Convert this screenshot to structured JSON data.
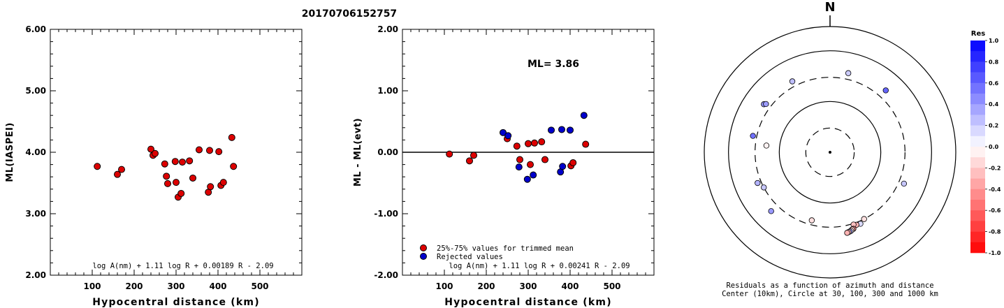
{
  "title": "20170706152757",
  "chart_data": [
    {
      "type": "scatter",
      "title": "",
      "xlabel": "Hypocentral distance (km)",
      "ylabel": "ML(IASPEI)",
      "xlim": [
        0,
        600
      ],
      "ylim": [
        2.0,
        6.0
      ],
      "xticks": [
        "100",
        "200",
        "300",
        "400",
        "500"
      ],
      "yticks": [
        "2.00",
        "3.00",
        "4.00",
        "5.00",
        "6.00"
      ],
      "formula": "log A(nm) + 1.11 log R + 0.00189 R - 2.09",
      "series": [
        {
          "color": "#dd0000",
          "x": [
            112,
            160,
            170,
            240,
            245,
            250,
            273,
            277,
            280,
            298,
            300,
            305,
            312,
            315,
            332,
            340,
            355,
            377,
            380,
            382,
            402,
            407,
            413,
            433,
            437
          ],
          "y": [
            3.77,
            3.64,
            3.72,
            4.05,
            3.95,
            3.98,
            3.81,
            3.61,
            3.49,
            3.85,
            3.51,
            3.27,
            3.33,
            3.84,
            3.86,
            3.58,
            4.04,
            3.35,
            4.03,
            3.44,
            4.01,
            3.46,
            3.51,
            4.24,
            3.77
          ]
        }
      ]
    },
    {
      "type": "scatter",
      "title": "",
      "annotation": "ML= 3.86",
      "xlabel": "Hypocentral distance (km)",
      "ylabel": "ML - ML(evt)",
      "xlim": [
        0,
        600
      ],
      "ylim": [
        -2.0,
        2.0
      ],
      "xticks": [
        "100",
        "200",
        "300",
        "400",
        "500"
      ],
      "yticks": [
        "-2.00",
        "-1.00",
        "0.00",
        "1.00",
        "2.00"
      ],
      "formula": "log A(nm) + 1.11 log R + 0.00241 R - 2.09",
      "legend": [
        "25%-75% values for trimmed mean",
        "Rejected values"
      ],
      "series": [
        {
          "name": "25%-75% values for trimmed mean",
          "color": "#dd0000",
          "x": [
            112,
            160,
            170,
            250,
            273,
            280,
            300,
            305,
            315,
            332,
            340,
            402,
            407,
            437
          ],
          "y": [
            -0.03,
            -0.14,
            -0.05,
            0.22,
            0.1,
            -0.12,
            0.14,
            -0.2,
            0.15,
            0.17,
            -0.12,
            -0.22,
            -0.17,
            0.13
          ]
        },
        {
          "name": "Rejected values",
          "color": "#0000cc",
          "x": [
            240,
            252,
            278,
            298,
            312,
            355,
            377,
            380,
            382,
            400,
            433
          ],
          "y": [
            0.32,
            0.27,
            -0.24,
            -0.44,
            -0.37,
            0.36,
            -0.32,
            0.37,
            -0.23,
            0.36,
            0.6
          ]
        }
      ]
    },
    {
      "type": "scatter",
      "title": "N",
      "caption_line1": "Residuals as a function of azimuth and distance",
      "caption_line2": "Center (10km), Circle at 30, 100, 300 and 1000 km",
      "colorbar_title": "Res",
      "colorbar_ticks": [
        "1.0",
        "0.8",
        "0.6",
        "0.4",
        "0.2",
        "0.0",
        "-0.2",
        "-0.4",
        "-0.6",
        "-0.8",
        "-1.0"
      ],
      "rings_km": [
        30,
        100,
        300,
        1000
      ],
      "points": [
        {
          "azimuth": 13,
          "distance": 398,
          "residual": 0.2
        },
        {
          "azimuth": 42,
          "distance": 437,
          "residual": 0.6
        },
        {
          "azimuth": 113,
          "distance": 382,
          "residual": 0.22
        },
        {
          "azimuth": 153,
          "distance": 300,
          "residual": -0.12
        },
        {
          "azimuth": 157,
          "distance": 340,
          "residual": 0.15
        },
        {
          "azimuth": 160,
          "distance": 332,
          "residual": -0.3
        },
        {
          "azimuth": 162,
          "distance": 315,
          "residual": -0.25
        },
        {
          "azimuth": 163,
          "distance": 378,
          "residual": -0.45
        },
        {
          "azimuth": 164,
          "distance": 382,
          "residual": -0.2
        },
        {
          "azimuth": 165,
          "distance": 400,
          "residual": -0.05
        },
        {
          "azimuth": 166,
          "distance": 407,
          "residual": 0.35
        },
        {
          "azimuth": 167,
          "distance": 413,
          "residual": -0.25
        },
        {
          "azimuth": 168,
          "distance": 420,
          "residual": -0.3
        },
        {
          "azimuth": 195,
          "distance": 245,
          "residual": -0.12
        },
        {
          "azimuth": 225,
          "distance": 437,
          "residual": 0.4
        },
        {
          "azimuth": 242,
          "distance": 300,
          "residual": 0.22
        },
        {
          "azimuth": 247,
          "distance": 355,
          "residual": 0.3
        },
        {
          "azimuth": 276,
          "distance": 182,
          "residual": -0.05
        },
        {
          "azimuth": 282,
          "distance": 357,
          "residual": 0.55
        },
        {
          "azimuth": 306,
          "distance": 407,
          "residual": 0.4
        },
        {
          "azimuth": 307,
          "distance": 380,
          "residual": 0.38
        },
        {
          "azimuth": 332,
          "distance": 382,
          "residual": 0.25
        }
      ]
    }
  ]
}
